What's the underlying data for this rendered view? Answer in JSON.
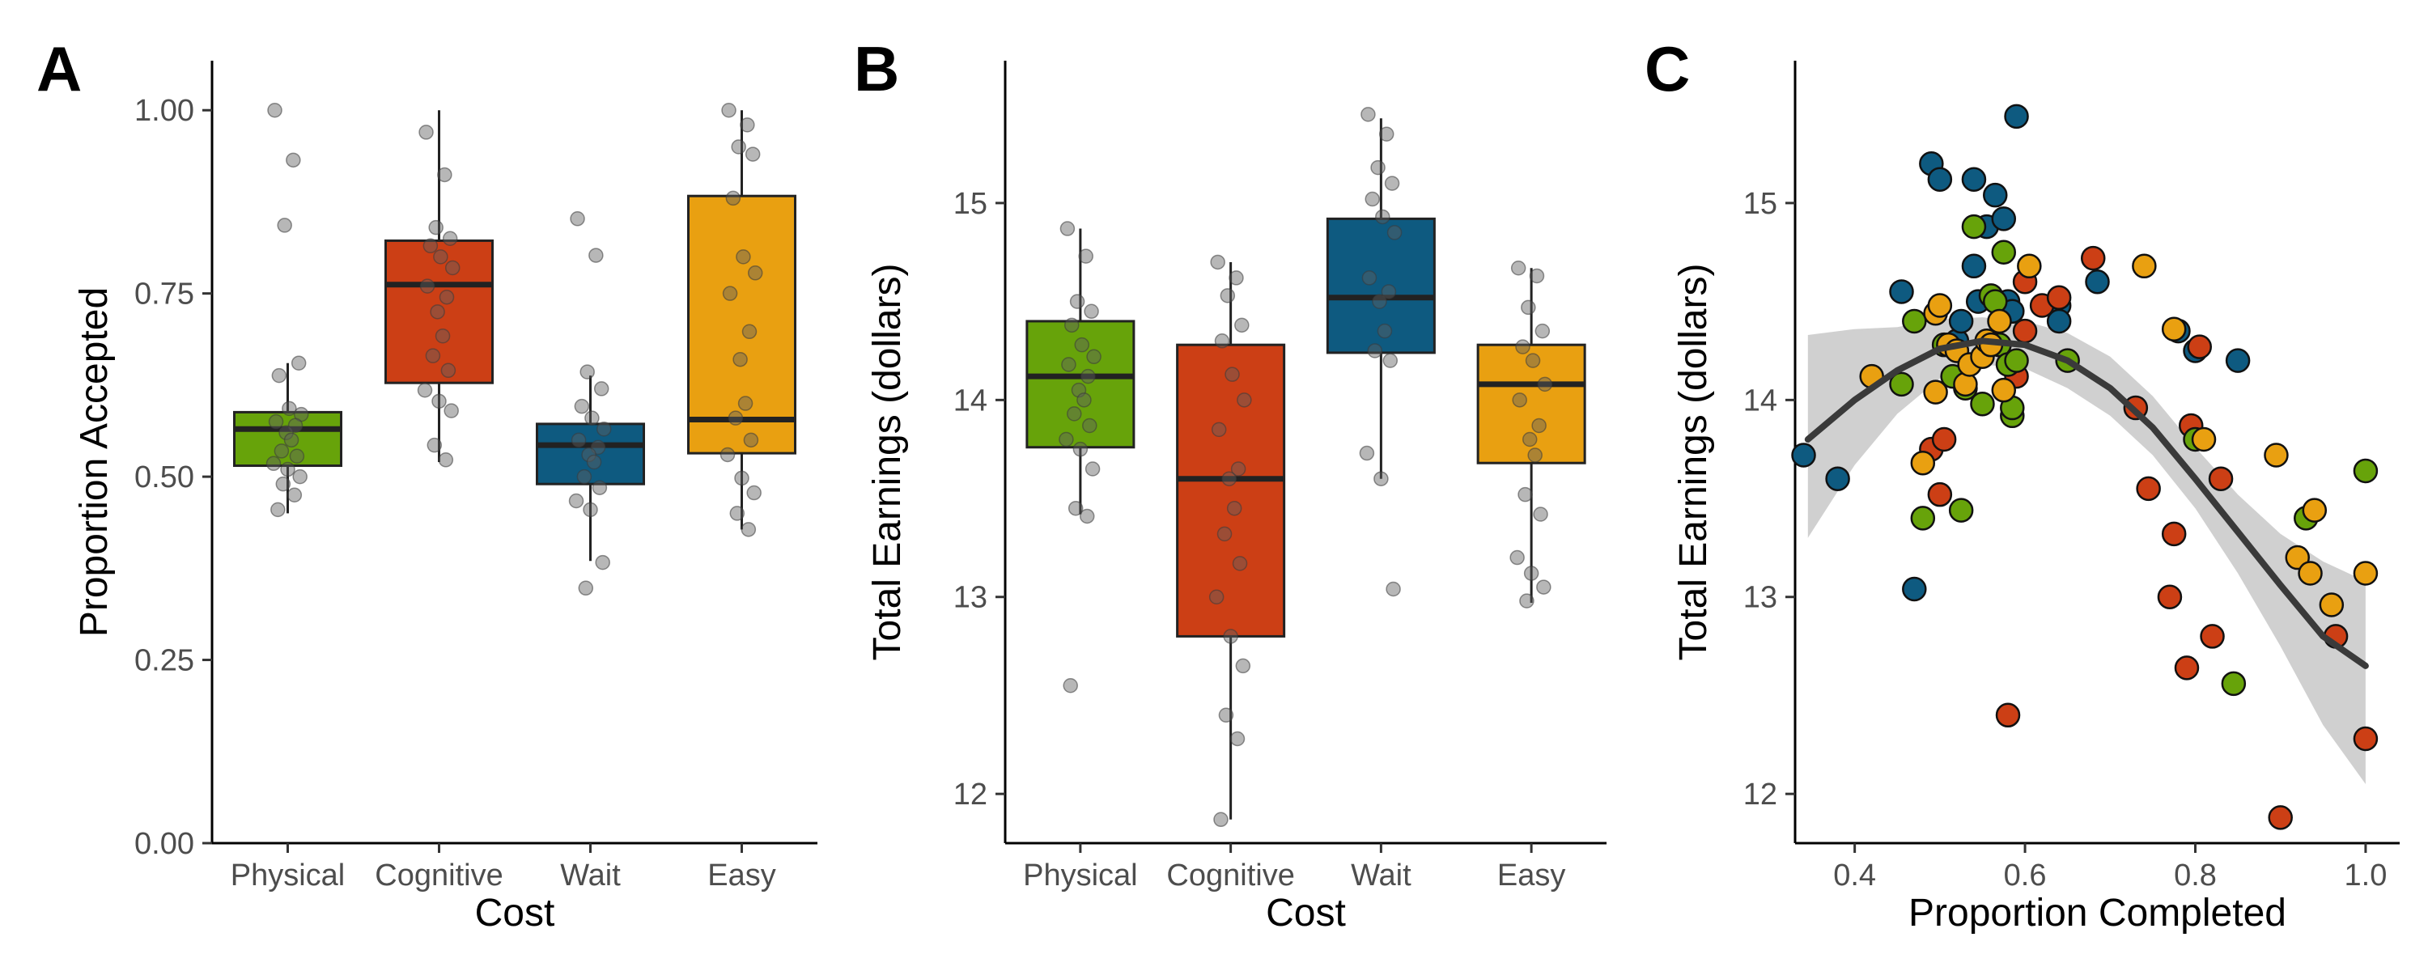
{
  "colors": {
    "Physical": "#67A30A",
    "Cognitive": "#CC3F15",
    "Wait": "#0E5A80",
    "Easy": "#E9A011",
    "smooth_line": "#3a3a3a",
    "ribbon": "#c8c8c8",
    "jitter_points": "#555555"
  },
  "chart_data": [
    {
      "panel": "A",
      "type": "box",
      "xlabel": "Cost",
      "ylabel": "Proportion Accepted",
      "categories": [
        "Physical",
        "Cognitive",
        "Wait",
        "Easy"
      ],
      "ylim": [
        0,
        1.04
      ],
      "yticks": [
        0,
        0.25,
        0.5,
        0.75,
        1.0
      ],
      "ytick_labels": [
        "0.00",
        "0.25",
        "0.50",
        "0.75",
        "1.00"
      ],
      "grid": false,
      "boxes": [
        {
          "category": "Physical",
          "whisker_low": 0.45,
          "q1": 0.515,
          "median": 0.565,
          "q3": 0.588,
          "whisker_high": 0.655
        },
        {
          "category": "Cognitive",
          "whisker_low": 0.52,
          "q1": 0.628,
          "median": 0.762,
          "q3": 0.822,
          "whisker_high": 1.0
        },
        {
          "category": "Wait",
          "whisker_low": 0.385,
          "q1": 0.49,
          "median": 0.543,
          "q3": 0.572,
          "whisker_high": 0.638
        },
        {
          "category": "Easy",
          "whisker_low": 0.428,
          "q1": 0.532,
          "median": 0.578,
          "q3": 0.883,
          "whisker_high": 1.0
        }
      ],
      "points": [
        {
          "category": "Physical",
          "values": [
            1.0,
            0.932,
            0.843,
            0.655,
            0.638,
            0.593,
            0.585,
            0.575,
            0.57,
            0.56,
            0.55,
            0.535,
            0.528,
            0.518,
            0.51,
            0.5,
            0.49,
            0.475,
            0.455
          ]
        },
        {
          "category": "Cognitive",
          "values": [
            0.97,
            0.912,
            0.84,
            0.825,
            0.815,
            0.8,
            0.785,
            0.76,
            0.745,
            0.725,
            0.692,
            0.665,
            0.645,
            0.618,
            0.603,
            0.59,
            0.543,
            0.523
          ]
        },
        {
          "category": "Wait",
          "values": [
            0.852,
            0.802,
            0.643,
            0.62,
            0.596,
            0.58,
            0.565,
            0.55,
            0.54,
            0.53,
            0.52,
            0.5,
            0.485,
            0.467,
            0.455,
            0.383,
            0.348
          ]
        },
        {
          "category": "Easy",
          "values": [
            1.0,
            0.98,
            0.95,
            0.94,
            0.88,
            0.8,
            0.778,
            0.75,
            0.698,
            0.66,
            0.6,
            0.58,
            0.55,
            0.53,
            0.498,
            0.478,
            0.45,
            0.428
          ]
        }
      ]
    },
    {
      "panel": "B",
      "type": "box",
      "xlabel": "Cost",
      "ylabel": "Total Earnings (dollars)",
      "categories": [
        "Physical",
        "Cognitive",
        "Wait",
        "Easy"
      ],
      "ylim": [
        11.75,
        15.62
      ],
      "yticks": [
        12,
        13,
        14,
        15
      ],
      "ytick_labels": [
        "12",
        "13",
        "14",
        "15"
      ],
      "grid": false,
      "boxes": [
        {
          "category": "Physical",
          "whisker_low": 13.42,
          "q1": 13.76,
          "median": 14.12,
          "q3": 14.4,
          "whisker_high": 14.87
        },
        {
          "category": "Cognitive",
          "whisker_low": 11.87,
          "q1": 12.8,
          "median": 13.6,
          "q3": 14.28,
          "whisker_high": 14.7
        },
        {
          "category": "Wait",
          "whisker_low": 13.6,
          "q1": 14.24,
          "median": 14.52,
          "q3": 14.92,
          "whisker_high": 15.43
        },
        {
          "category": "Easy",
          "whisker_low": 12.97,
          "q1": 13.68,
          "median": 14.08,
          "q3": 14.28,
          "whisker_high": 14.67
        }
      ],
      "points": [
        {
          "category": "Physical",
          "values": [
            14.87,
            14.73,
            14.5,
            14.45,
            14.38,
            14.28,
            14.22,
            14.18,
            14.12,
            14.05,
            14.0,
            13.93,
            13.87,
            13.8,
            13.75,
            13.65,
            13.45,
            13.41,
            12.55
          ]
        },
        {
          "category": "Cognitive",
          "values": [
            14.7,
            14.62,
            14.53,
            14.38,
            14.3,
            14.13,
            14.0,
            13.85,
            13.65,
            13.6,
            13.45,
            13.32,
            13.17,
            13.0,
            12.8,
            12.65,
            12.4,
            12.28,
            11.87
          ]
        },
        {
          "category": "Wait",
          "values": [
            15.45,
            15.35,
            15.18,
            15.1,
            15.02,
            14.93,
            14.85,
            14.62,
            14.55,
            14.5,
            14.35,
            14.25,
            14.2,
            13.73,
            13.6,
            13.04
          ]
        },
        {
          "category": "Easy",
          "values": [
            14.67,
            14.63,
            14.47,
            14.35,
            14.27,
            14.2,
            14.08,
            14.0,
            13.87,
            13.8,
            13.72,
            13.52,
            13.42,
            13.2,
            13.12,
            13.05,
            12.98
          ]
        }
      ]
    },
    {
      "panel": "C",
      "type": "scatter",
      "xlabel": "Proportion Completed",
      "ylabel": "Total Earnings (dollars)",
      "xlim": [
        0.33,
        1.04
      ],
      "ylim": [
        11.75,
        15.62
      ],
      "xticks": [
        0.4,
        0.6,
        0.8,
        1.0
      ],
      "xtick_labels": [
        "0.4",
        "0.6",
        "0.8",
        "1.0"
      ],
      "yticks": [
        12,
        13,
        14,
        15
      ],
      "ytick_labels": [
        "12",
        "13",
        "14",
        "15"
      ],
      "grid": false,
      "series": [
        {
          "group": "Wait",
          "points": [
            [
              0.34,
              13.72
            ],
            [
              0.38,
              13.6
            ],
            [
              0.455,
              14.55
            ],
            [
              0.47,
              13.04
            ],
            [
              0.49,
              15.2
            ],
            [
              0.5,
              15.12
            ],
            [
              0.52,
              14.3
            ],
            [
              0.525,
              14.4
            ],
            [
              0.54,
              15.12
            ],
            [
              0.54,
              14.68
            ],
            [
              0.545,
              14.5
            ],
            [
              0.555,
              14.88
            ],
            [
              0.565,
              15.04
            ],
            [
              0.575,
              14.92
            ],
            [
              0.58,
              14.5
            ],
            [
              0.585,
              14.45
            ],
            [
              0.59,
              15.44
            ],
            [
              0.64,
              14.48
            ],
            [
              0.64,
              14.4
            ],
            [
              0.685,
              14.6
            ],
            [
              0.78,
              14.35
            ],
            [
              0.8,
              14.25
            ],
            [
              0.85,
              14.2
            ]
          ]
        },
        {
          "group": "Cognitive",
          "points": [
            [
              0.49,
              13.75
            ],
            [
              0.5,
              13.52
            ],
            [
              0.505,
              13.8
            ],
            [
              0.58,
              12.4
            ],
            [
              0.59,
              14.12
            ],
            [
              0.6,
              14.6
            ],
            [
              0.6,
              14.35
            ],
            [
              0.62,
              14.48
            ],
            [
              0.64,
              14.52
            ],
            [
              0.68,
              14.72
            ],
            [
              0.73,
              13.96
            ],
            [
              0.745,
              13.55
            ],
            [
              0.77,
              13.0
            ],
            [
              0.775,
              13.32
            ],
            [
              0.79,
              12.64
            ],
            [
              0.795,
              13.87
            ],
            [
              0.805,
              14.27
            ],
            [
              0.82,
              12.8
            ],
            [
              0.83,
              13.6
            ],
            [
              0.9,
              11.88
            ],
            [
              0.965,
              12.8
            ],
            [
              1.0,
              12.28
            ]
          ]
        },
        {
          "group": "Physical",
          "points": [
            [
              0.455,
              14.08
            ],
            [
              0.47,
              14.4
            ],
            [
              0.48,
              13.4
            ],
            [
              0.505,
              14.28
            ],
            [
              0.515,
              14.12
            ],
            [
              0.525,
              13.44
            ],
            [
              0.53,
              14.06
            ],
            [
              0.54,
              14.88
            ],
            [
              0.55,
              13.98
            ],
            [
              0.56,
              14.53
            ],
            [
              0.565,
              14.5
            ],
            [
              0.57,
              14.28
            ],
            [
              0.575,
              14.75
            ],
            [
              0.58,
              14.18
            ],
            [
              0.585,
              13.92
            ],
            [
              0.585,
              13.96
            ],
            [
              0.59,
              14.2
            ],
            [
              0.65,
              14.2
            ],
            [
              0.8,
              13.8
            ],
            [
              0.845,
              12.56
            ],
            [
              0.93,
              13.4
            ],
            [
              1.0,
              13.64
            ]
          ]
        },
        {
          "group": "Easy",
          "points": [
            [
              0.42,
              14.12
            ],
            [
              0.48,
              13.68
            ],
            [
              0.495,
              14.44
            ],
            [
              0.495,
              14.04
            ],
            [
              0.5,
              14.48
            ],
            [
              0.51,
              14.28
            ],
            [
              0.52,
              14.25
            ],
            [
              0.53,
              14.08
            ],
            [
              0.535,
              14.18
            ],
            [
              0.55,
              14.22
            ],
            [
              0.555,
              14.3
            ],
            [
              0.56,
              14.28
            ],
            [
              0.57,
              14.4
            ],
            [
              0.575,
              14.05
            ],
            [
              0.605,
              14.68
            ],
            [
              0.74,
              14.68
            ],
            [
              0.775,
              14.36
            ],
            [
              0.81,
              13.8
            ],
            [
              0.895,
              13.72
            ],
            [
              0.92,
              13.2
            ],
            [
              0.935,
              13.12
            ],
            [
              0.94,
              13.44
            ],
            [
              0.96,
              12.96
            ],
            [
              1.0,
              13.12
            ]
          ]
        }
      ],
      "smooth": {
        "x": [
          0.345,
          0.4,
          0.45,
          0.5,
          0.55,
          0.6,
          0.65,
          0.7,
          0.75,
          0.8,
          0.85,
          0.9,
          0.95,
          1.0
        ],
        "y": [
          13.8,
          14.0,
          14.15,
          14.26,
          14.3,
          14.28,
          14.2,
          14.06,
          13.86,
          13.6,
          13.33,
          13.06,
          12.8,
          12.65
        ],
        "lower": [
          13.3,
          13.67,
          13.93,
          14.11,
          14.18,
          14.16,
          14.06,
          13.92,
          13.72,
          13.45,
          13.12,
          12.75,
          12.35,
          12.05
        ],
        "upper": [
          14.33,
          14.36,
          14.37,
          14.41,
          14.42,
          14.4,
          14.34,
          14.22,
          14.02,
          13.76,
          13.52,
          13.32,
          13.18,
          13.08
        ]
      }
    }
  ],
  "panel_labels": [
    "A",
    "B",
    "C"
  ]
}
